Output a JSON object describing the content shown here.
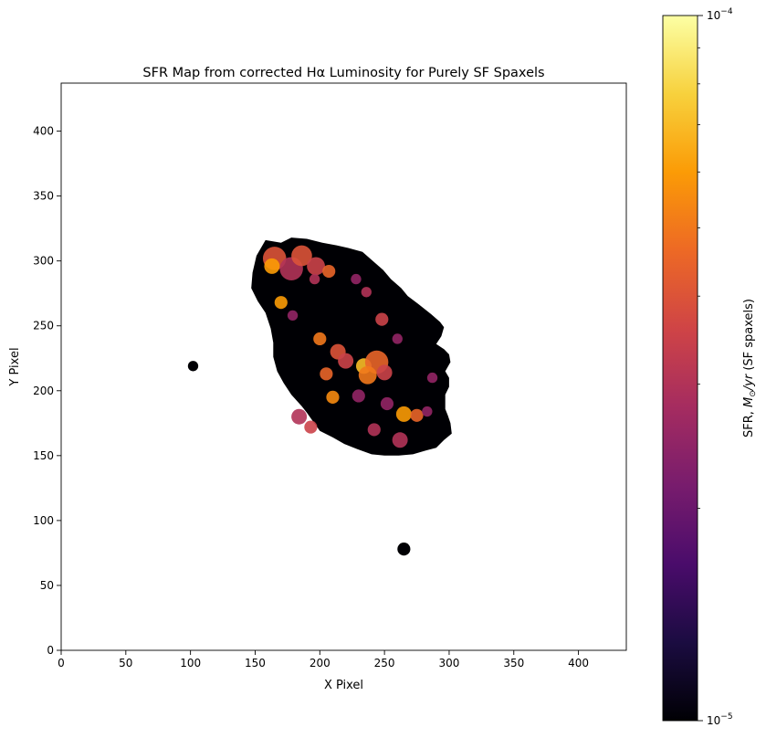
{
  "chart_data": {
    "type": "heatmap",
    "title": "SFR Map from corrected Hα Luminosity for Purely SF Spaxels",
    "xlabel": "X Pixel",
    "ylabel": "Y Pixel",
    "xlim": [
      0,
      437
    ],
    "ylim": [
      0,
      437
    ],
    "x_ticks": [
      0,
      50,
      100,
      150,
      200,
      250,
      300,
      350,
      400
    ],
    "y_ticks": [
      0,
      50,
      100,
      150,
      200,
      250,
      300,
      350,
      400
    ],
    "colormap": "inferno",
    "colorbar": {
      "label_prefix": "SFR, ",
      "label_math": "M",
      "label_sub": "⊙",
      "label_math2": "/yr",
      "label_suffix": " (SF spaxels)",
      "scale": "log",
      "vmin": 1e-05,
      "vmax": 0.0001,
      "ticks": [
        {
          "base": "10",
          "exp": "−5",
          "value": 1e-05
        },
        {
          "base": "10",
          "exp": "−4",
          "value": 0.0001
        }
      ],
      "minor_ticks": [
        2e-05,
        3e-05,
        4e-05,
        5e-05,
        6e-05,
        7e-05,
        8e-05,
        9e-05
      ],
      "stops": [
        "#000004",
        "#1b0c41",
        "#4a0c6b",
        "#781c6d",
        "#a52c60",
        "#cf4446",
        "#ed6925",
        "#fb9b06",
        "#f7d13d",
        "#fcffa4"
      ]
    },
    "regions": [
      {
        "name": "main-galaxy",
        "polygon": [
          [
            158,
            316
          ],
          [
            170,
            314
          ],
          [
            178,
            318
          ],
          [
            190,
            317
          ],
          [
            202,
            314
          ],
          [
            213,
            312
          ],
          [
            222,
            310
          ],
          [
            233,
            307
          ],
          [
            241,
            300
          ],
          [
            249,
            293
          ],
          [
            255,
            286
          ],
          [
            263,
            279
          ],
          [
            268,
            273
          ],
          [
            276,
            267
          ],
          [
            286,
            259
          ],
          [
            293,
            253
          ],
          [
            296,
            249
          ],
          [
            294,
            242
          ],
          [
            290,
            236
          ],
          [
            296,
            232
          ],
          [
            300,
            228
          ],
          [
            301,
            222
          ],
          [
            297,
            215
          ],
          [
            300,
            210
          ],
          [
            300,
            203
          ],
          [
            297,
            197
          ],
          [
            297,
            192
          ],
          [
            297,
            186
          ],
          [
            299,
            181
          ],
          [
            301,
            175
          ],
          [
            302,
            167
          ],
          [
            296,
            162
          ],
          [
            290,
            156
          ],
          [
            282,
            154
          ],
          [
            272,
            151
          ],
          [
            261,
            150
          ],
          [
            250,
            150
          ],
          [
            240,
            151
          ],
          [
            229,
            155
          ],
          [
            219,
            159
          ],
          [
            210,
            164
          ],
          [
            200,
            169
          ],
          [
            195,
            176
          ],
          [
            190,
            183
          ],
          [
            186,
            188
          ],
          [
            178,
            197
          ],
          [
            172,
            206
          ],
          [
            167,
            215
          ],
          [
            164,
            226
          ],
          [
            164,
            237
          ],
          [
            162,
            248
          ],
          [
            158,
            260
          ],
          [
            152,
            269
          ],
          [
            147,
            279
          ],
          [
            148,
            291
          ],
          [
            151,
            304
          ]
        ],
        "value": 1e-05
      },
      {
        "name": "blob-left",
        "cx": 102,
        "cy": 219,
        "rx": 4,
        "ry": 4,
        "value": 1e-05
      },
      {
        "name": "blob-bottom",
        "cx": 265,
        "cy": 78,
        "rx": 5,
        "ry": 5,
        "value": 1e-05
      }
    ],
    "hotspots": [
      {
        "x": 165,
        "y": 302,
        "r": 9,
        "value": 4e-05
      },
      {
        "x": 163,
        "y": 296,
        "r": 6,
        "value": 6e-05
      },
      {
        "x": 178,
        "y": 294,
        "r": 9,
        "value": 3e-05
      },
      {
        "x": 186,
        "y": 304,
        "r": 8,
        "value": 4e-05
      },
      {
        "x": 197,
        "y": 296,
        "r": 7,
        "value": 3.5e-05
      },
      {
        "x": 207,
        "y": 292,
        "r": 5,
        "value": 4.5e-05
      },
      {
        "x": 170,
        "y": 268,
        "r": 5,
        "value": 6e-05
      },
      {
        "x": 196,
        "y": 286,
        "r": 4,
        "value": 3e-05
      },
      {
        "x": 228,
        "y": 286,
        "r": 4,
        "value": 2.5e-05
      },
      {
        "x": 236,
        "y": 276,
        "r": 4,
        "value": 3e-05
      },
      {
        "x": 248,
        "y": 255,
        "r": 5,
        "value": 3.5e-05
      },
      {
        "x": 200,
        "y": 240,
        "r": 5,
        "value": 5e-05
      },
      {
        "x": 214,
        "y": 230,
        "r": 6,
        "value": 4e-05
      },
      {
        "x": 220,
        "y": 223,
        "r": 6,
        "value": 3.5e-05
      },
      {
        "x": 234,
        "y": 219,
        "r": 6,
        "value": 7e-05
      },
      {
        "x": 244,
        "y": 222,
        "r": 9,
        "value": 4.5e-05
      },
      {
        "x": 237,
        "y": 212,
        "r": 7,
        "value": 5e-05
      },
      {
        "x": 250,
        "y": 214,
        "r": 6,
        "value": 3.5e-05
      },
      {
        "x": 205,
        "y": 213,
        "r": 5,
        "value": 4.5e-05
      },
      {
        "x": 210,
        "y": 195,
        "r": 5,
        "value": 5.5e-05
      },
      {
        "x": 184,
        "y": 180,
        "r": 6,
        "value": 3e-05
      },
      {
        "x": 193,
        "y": 172,
        "r": 5,
        "value": 3.5e-05
      },
      {
        "x": 265,
        "y": 182,
        "r": 6,
        "value": 6e-05
      },
      {
        "x": 275,
        "y": 181,
        "r": 5,
        "value": 4.5e-05
      },
      {
        "x": 252,
        "y": 190,
        "r": 5,
        "value": 2.5e-05
      },
      {
        "x": 242,
        "y": 170,
        "r": 5,
        "value": 3e-05
      },
      {
        "x": 262,
        "y": 162,
        "r": 6,
        "value": 3e-05
      },
      {
        "x": 283,
        "y": 184,
        "r": 4,
        "value": 2.5e-05
      },
      {
        "x": 230,
        "y": 196,
        "r": 5,
        "value": 2.5e-05
      },
      {
        "x": 260,
        "y": 240,
        "r": 4,
        "value": 2.5e-05
      },
      {
        "x": 287,
        "y": 210,
        "r": 4,
        "value": 2.5e-05
      },
      {
        "x": 179,
        "y": 258,
        "r": 4,
        "value": 2.5e-05
      }
    ]
  }
}
